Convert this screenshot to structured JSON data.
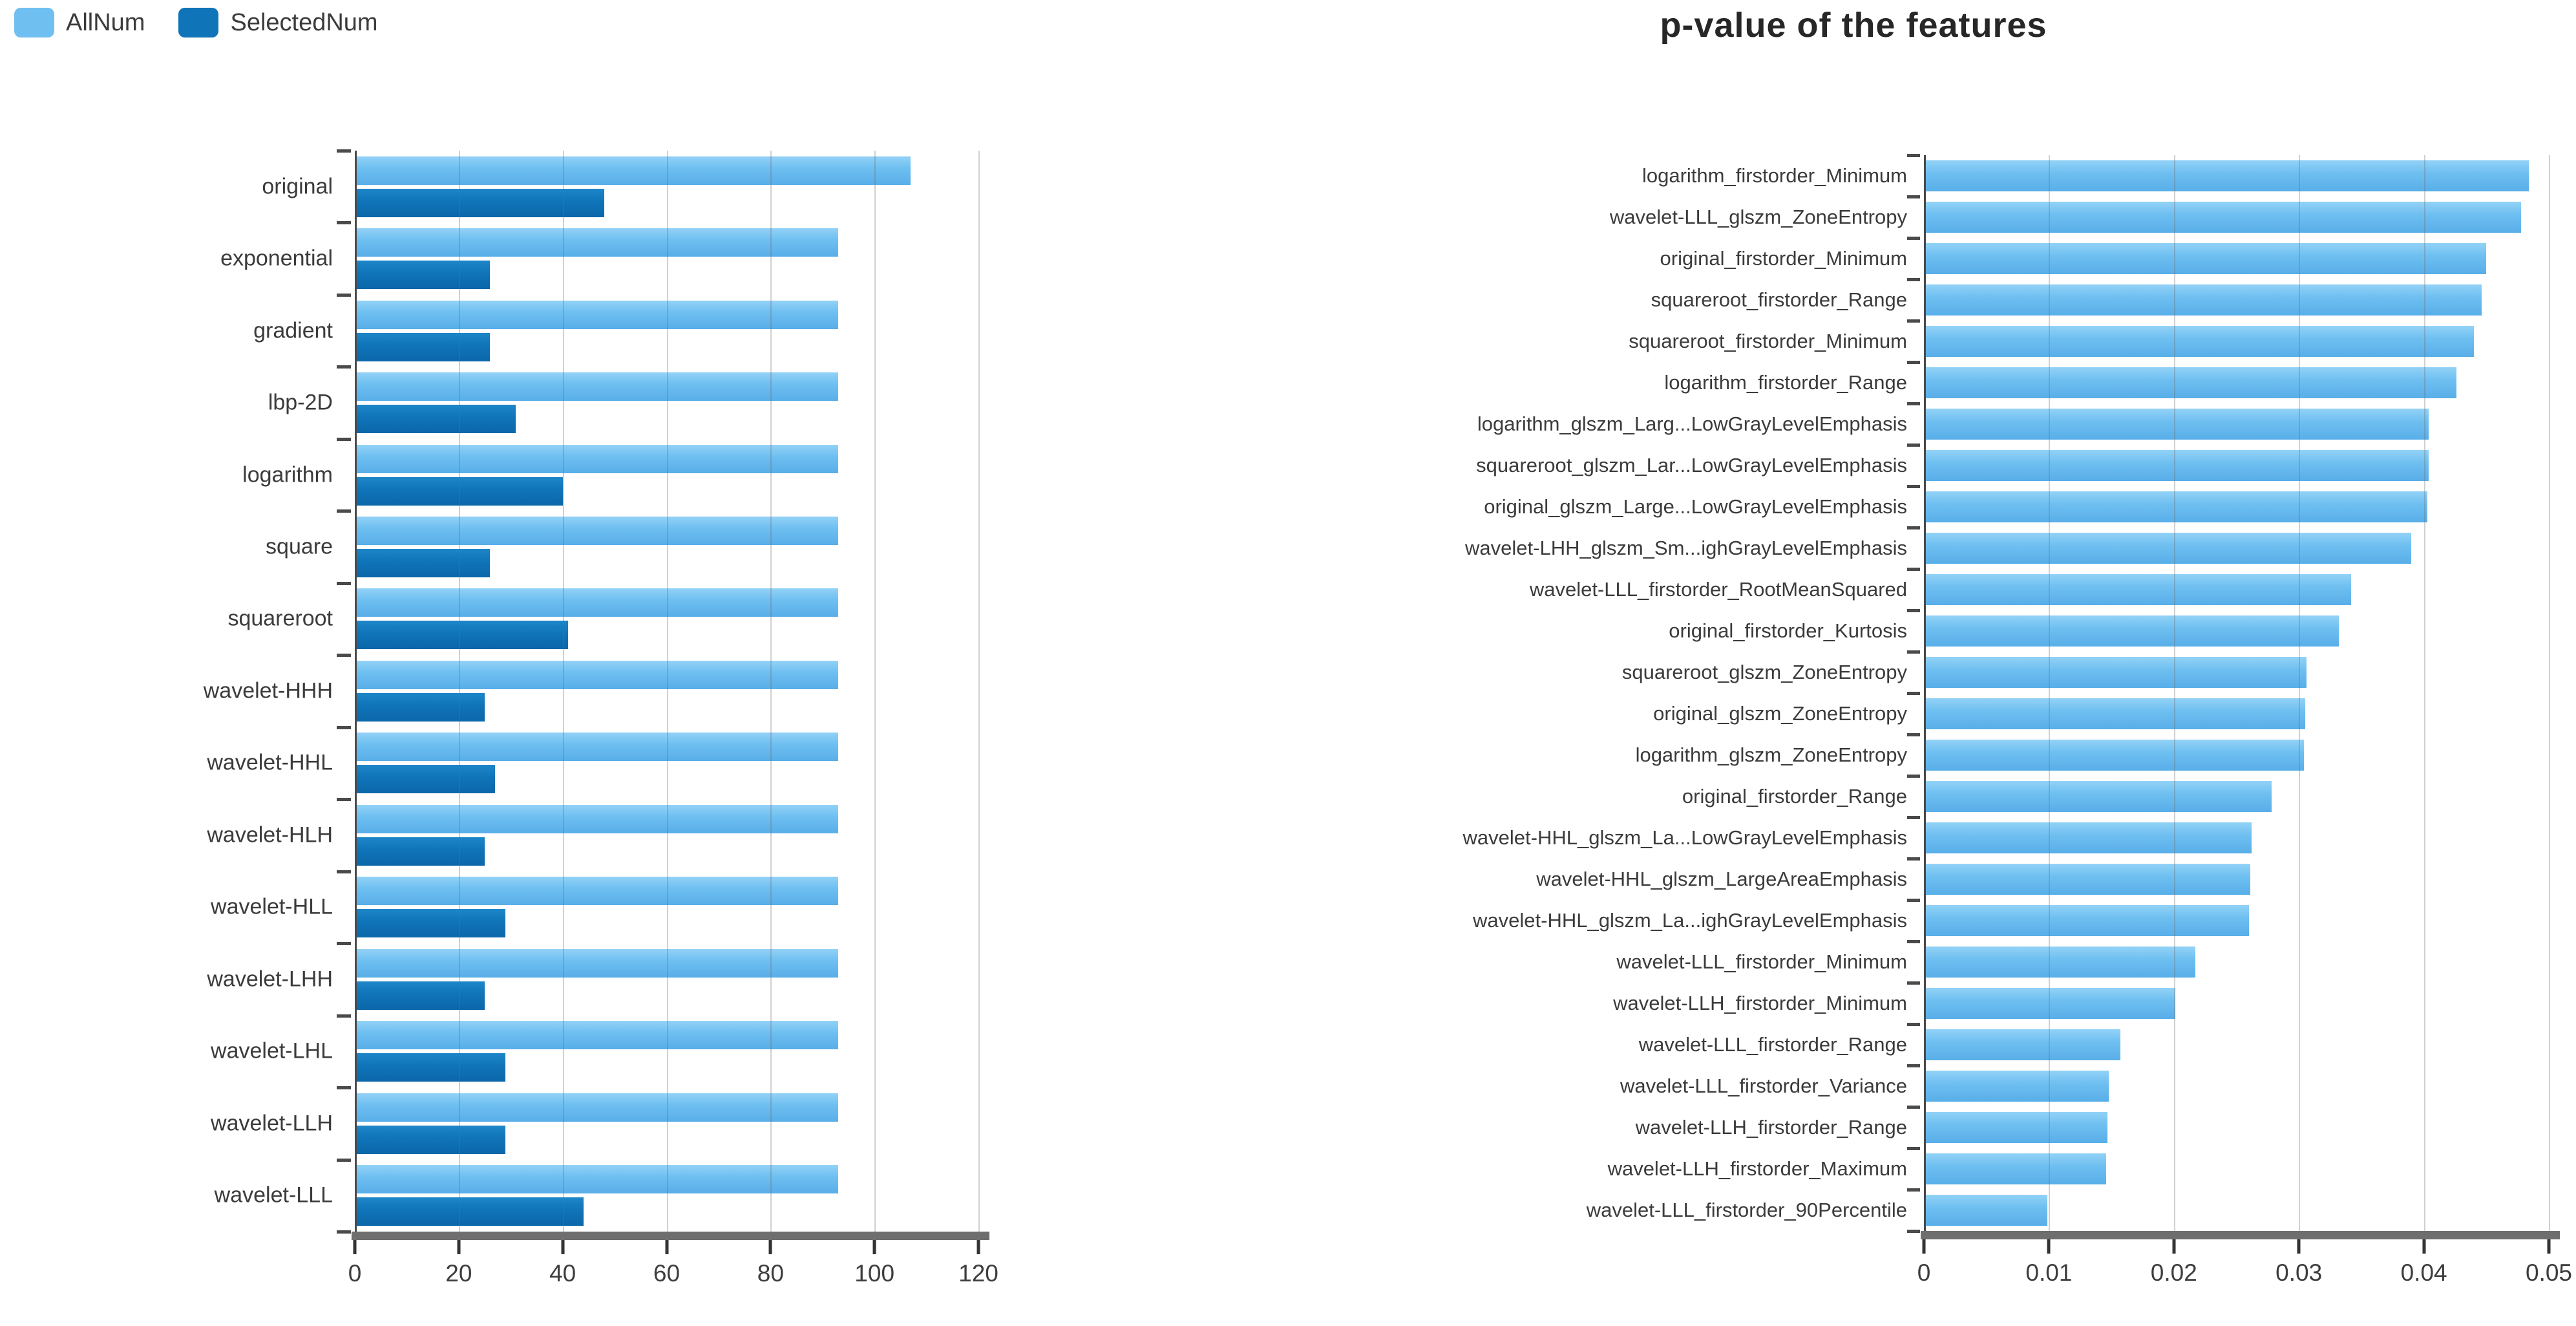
{
  "legend": {
    "items": [
      {
        "label": "AllNum",
        "color": "#6fc0f1"
      },
      {
        "label": "SelectedNum",
        "color": "#1074b8"
      }
    ]
  },
  "chart_data": [
    {
      "type": "bar",
      "orientation": "horizontal",
      "title": "",
      "legend_position": "top-left",
      "grid": true,
      "categories": [
        "original",
        "exponential",
        "gradient",
        "lbp-2D",
        "logarithm",
        "square",
        "squareroot",
        "wavelet-HHH",
        "wavelet-HHL",
        "wavelet-HLH",
        "wavelet-HLL",
        "wavelet-LHH",
        "wavelet-LHL",
        "wavelet-LLH",
        "wavelet-LLL"
      ],
      "series": [
        {
          "name": "AllNum",
          "color": "#6fc0f1",
          "values": [
            107,
            93,
            93,
            93,
            93,
            93,
            93,
            93,
            93,
            93,
            93,
            93,
            93,
            93,
            93
          ]
        },
        {
          "name": "SelectedNum",
          "color": "#1074b8",
          "values": [
            48,
            26,
            26,
            31,
            40,
            26,
            41,
            25,
            27,
            25,
            29,
            25,
            29,
            29,
            44
          ]
        }
      ],
      "xlabel": "",
      "ylabel": "",
      "xlim": [
        0,
        120
      ],
      "xticks": [
        0,
        20,
        40,
        60,
        80,
        100,
        120
      ],
      "xtick_labels": [
        "0",
        "20",
        "40",
        "60",
        "80",
        "100",
        "120"
      ]
    },
    {
      "type": "bar",
      "orientation": "horizontal",
      "title": "p-value of the features",
      "grid": true,
      "categories": [
        "logarithm_firstorder_Minimum",
        "wavelet-LLL_glszm_ZoneEntropy",
        "original_firstorder_Minimum",
        "squareroot_firstorder_Range",
        "squareroot_firstorder_Minimum",
        "logarithm_firstorder_Range",
        "logarithm_glszm_Larg...LowGrayLevelEmphasis",
        "squareroot_glszm_Lar...LowGrayLevelEmphasis",
        "original_glszm_Large...LowGrayLevelEmphasis",
        "wavelet-LHH_glszm_Sm...ighGrayLevelEmphasis",
        "wavelet-LLL_firstorder_RootMeanSquared",
        "original_firstorder_Kurtosis",
        "squareroot_glszm_ZoneEntropy",
        "original_glszm_ZoneEntropy",
        "logarithm_glszm_ZoneEntropy",
        "original_firstorder_Range",
        "wavelet-HHL_glszm_La...LowGrayLevelEmphasis",
        "wavelet-HHL_glszm_LargeAreaEmphasis",
        "wavelet-HHL_glszm_La...ighGrayLevelEmphasis",
        "wavelet-LLL_firstorder_Minimum",
        "wavelet-LLH_firstorder_Minimum",
        "wavelet-LLL_firstorder_Range",
        "wavelet-LLL_firstorder_Variance",
        "wavelet-LLH_firstorder_Range",
        "wavelet-LLH_firstorder_Maximum",
        "wavelet-LLL_firstorder_90Percentile"
      ],
      "values": [
        0.0484,
        0.0478,
        0.045,
        0.0446,
        0.044,
        0.0426,
        0.0404,
        0.0404,
        0.0403,
        0.039,
        0.0342,
        0.0332,
        0.0306,
        0.0305,
        0.0304,
        0.0278,
        0.0262,
        0.0261,
        0.026,
        0.0217,
        0.0201,
        0.0157,
        0.0148,
        0.0147,
        0.0146,
        0.0099
      ],
      "bar_color": "#6fc0f1",
      "xlabel": "",
      "ylabel": "",
      "xlim": [
        0,
        0.05
      ],
      "xticks": [
        0,
        0.01,
        0.02,
        0.03,
        0.04,
        0.05
      ],
      "xtick_labels": [
        "0",
        "0.01",
        "0.02",
        "0.03",
        "0.04",
        "0.05"
      ]
    }
  ]
}
